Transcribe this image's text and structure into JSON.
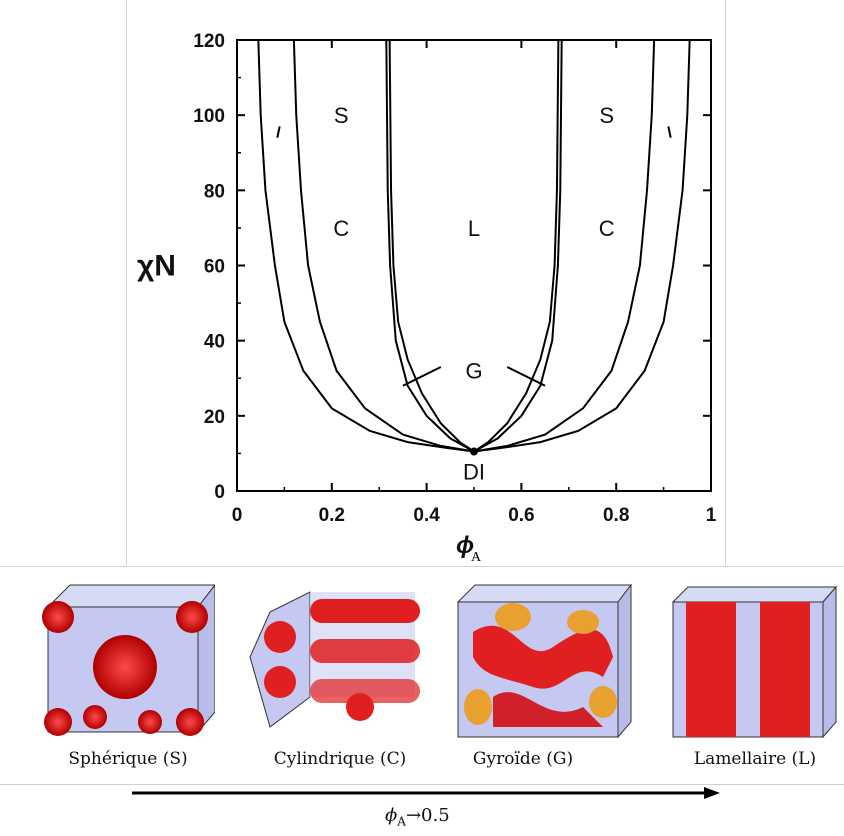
{
  "chart_data": {
    "type": "line",
    "ylabel": "χN",
    "xlabel_symbol": "ϕ",
    "xlabel_subscript": "A",
    "xlim": [
      0,
      1
    ],
    "ylim": [
      0,
      120
    ],
    "x_ticks": [
      "0",
      "0.2",
      "0.4",
      "0.6",
      "0.8",
      "1"
    ],
    "y_ticks": [
      "0",
      "20",
      "40",
      "60",
      "80",
      "100",
      "120"
    ],
    "grid": false,
    "critical_point": {
      "label": "DI",
      "x": 0.5,
      "y": 10.5
    },
    "regions": [
      {
        "label": "S",
        "x": 0.22,
        "y": 100
      },
      {
        "label": "S",
        "x": 0.78,
        "y": 100
      },
      {
        "label": "C",
        "x": 0.22,
        "y": 70
      },
      {
        "label": "L",
        "x": 0.5,
        "y": 70
      },
      {
        "label": "C",
        "x": 0.78,
        "y": 70
      },
      {
        "label": "G",
        "x": 0.5,
        "y": 32
      }
    ],
    "series": [
      {
        "boundary": "dis-S",
        "x": [
          0.045,
          0.05,
          0.06,
          0.08,
          0.1,
          0.14,
          0.2,
          0.28,
          0.36,
          0.44,
          0.5
        ],
        "y": [
          120,
          100,
          80,
          60,
          45,
          32,
          22,
          16,
          13,
          11.5,
          10.5
        ]
      },
      {
        "boundary": "S-C",
        "x": [
          0.12,
          0.125,
          0.135,
          0.15,
          0.175,
          0.21,
          0.27,
          0.35,
          0.43,
          0.5
        ],
        "y": [
          120,
          100,
          80,
          60,
          45,
          32,
          22,
          15,
          12,
          10.5
        ]
      },
      {
        "boundary": "C-G",
        "x": [
          0.315,
          0.318,
          0.323,
          0.335,
          0.36,
          0.4,
          0.45,
          0.5
        ],
        "y": [
          120,
          80,
          60,
          40,
          28,
          20,
          14,
          10.5
        ]
      },
      {
        "boundary": "C-L",
        "x": [
          0.322,
          0.325,
          0.33,
          0.34,
          0.36,
          0.39,
          0.43,
          0.47,
          0.5
        ],
        "y": [
          120,
          80,
          60,
          45,
          35,
          26,
          18,
          13,
          10.5
        ]
      }
    ],
    "annotations": [
      {
        "label": "S",
        "arrow_from": [
          0.09,
          97
        ],
        "arrow_to": [
          0.075,
          94
        ]
      },
      {
        "label": "G",
        "arrow_from": [
          0.44,
          34
        ],
        "arrow_to": [
          0.34,
          28
        ]
      }
    ]
  },
  "structures": [
    {
      "name": "Sphérique (S)",
      "color_main": "#e02020",
      "color_alt": "#8b8bd8"
    },
    {
      "name": "Cylindrique (C)",
      "color_main": "#e02020",
      "color_alt": "#8b8bd8"
    },
    {
      "name": "Gyroïde (G)",
      "color_main": "#e02020",
      "color_alt": "#e8a030"
    },
    {
      "name": "Lamellaire (L)",
      "color_main": "#e02020",
      "color_alt": "#8b8bd8"
    }
  ],
  "arrow": {
    "phi": "ϕ",
    "sub": "A",
    "rest": "→0.5"
  }
}
